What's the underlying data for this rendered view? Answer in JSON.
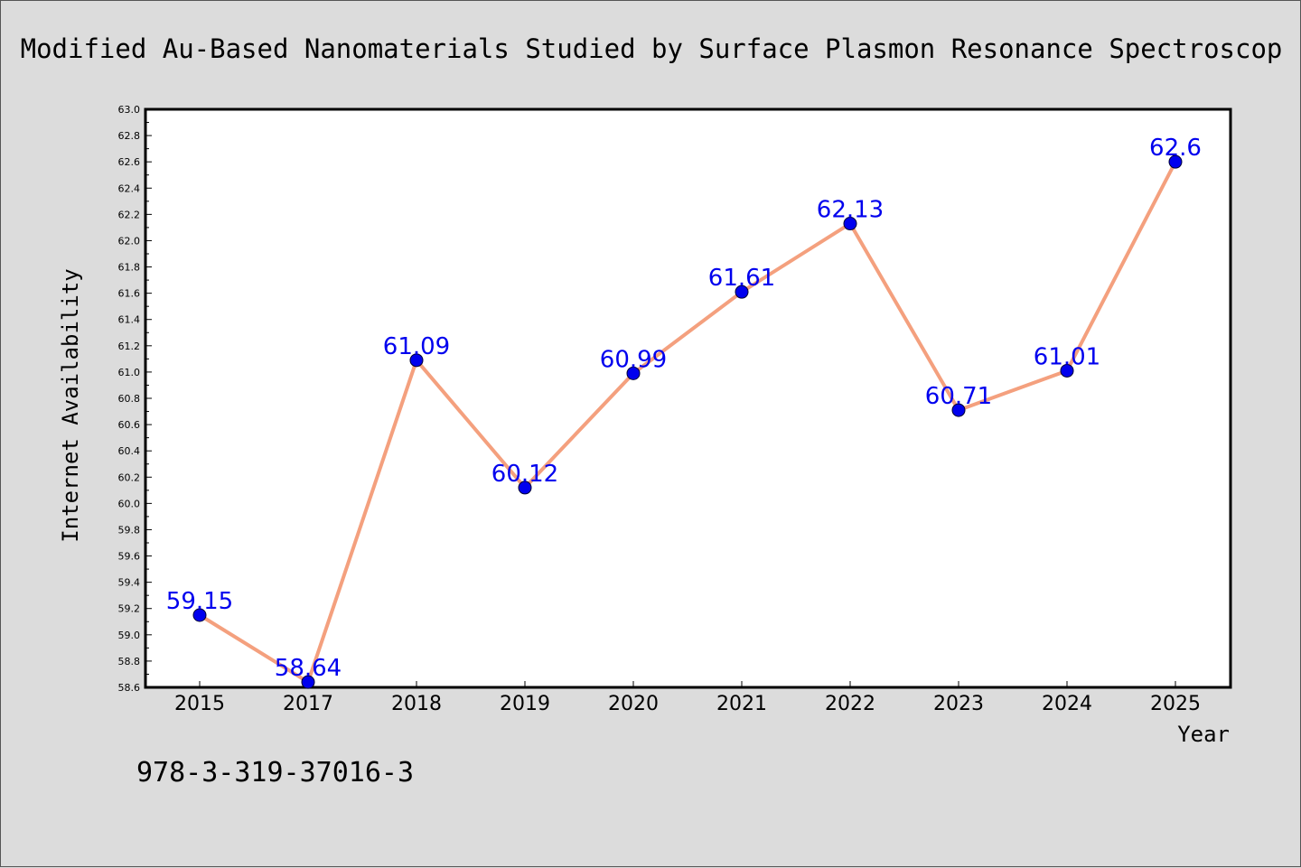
{
  "chart_data": {
    "type": "line",
    "title": "Modified Au-Based Nanomaterials Studied by Surface Plasmon Resonance Spectroscop",
    "xlabel": "Year",
    "ylabel": "Internet Availability",
    "categories": [
      "2015",
      "2017",
      "2018",
      "2019",
      "2020",
      "2021",
      "2022",
      "2023",
      "2024",
      "2025"
    ],
    "series": [
      {
        "values": [
          59.15,
          58.64,
          61.09,
          60.12,
          60.99,
          61.61,
          62.13,
          60.71,
          61.01,
          62.6
        ],
        "data_labels": [
          "59.15",
          "58.64",
          "61.09",
          "60.12",
          "60.99",
          "61.61",
          "62.13",
          "60.71",
          "61.01",
          "62.6"
        ]
      }
    ],
    "ylim": [
      58.6,
      63.0
    ],
    "ytick_step": 0.2,
    "yticks": [
      "58.6",
      "58.8",
      "59.0",
      "59.2",
      "59.4",
      "59.6",
      "59.8",
      "60.0",
      "60.2",
      "60.4",
      "60.6",
      "60.8",
      "61.0",
      "61.2",
      "61.4",
      "61.6",
      "61.8",
      "62.0",
      "62.2",
      "62.4",
      "62.6",
      "62.8",
      "63.0"
    ],
    "grid": false,
    "legend": "none",
    "line_color": "#f4a07e",
    "marker_color": "#0000ee",
    "label_color": "#0000ee",
    "background_color": "#dcdcdc",
    "plot_background_color": "#ffffff",
    "annotation": "978-3-319-37016-3"
  }
}
